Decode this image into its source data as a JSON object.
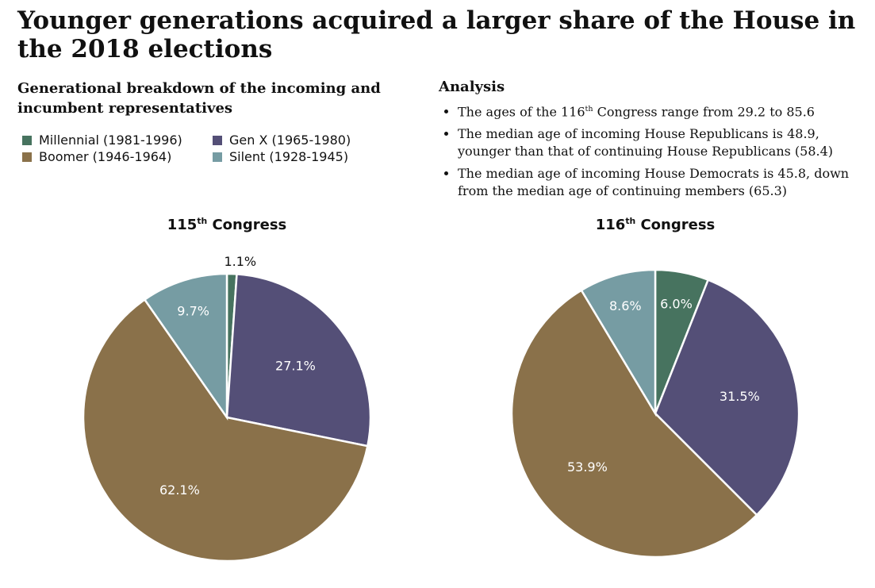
{
  "title": "Younger generations acquired a larger share of the House in the 2018 elections",
  "subtitle": "Generational breakdown of the incoming and incumbent representatives",
  "legend": [
    {
      "label": "Millennial (1981-1996)",
      "color": "#47735f"
    },
    {
      "label": "Gen X (1965-1980)",
      "color": "#544f77"
    },
    {
      "label": "Boomer (1946-1964)",
      "color": "#8a714a"
    },
    {
      "label": "Silent (1928-1945)",
      "color": "#769ca3"
    }
  ],
  "analysis": {
    "heading": "Analysis",
    "bullets": [
      {
        "pre": "The ages of the 116",
        "sup": "th",
        "post": " Congress range from 29.2 to 85.6"
      },
      {
        "pre": "The median age of incoming House Republicans is 48.9, younger than that of continuing House Republicans (58.4)",
        "sup": "",
        "post": ""
      },
      {
        "pre": "The median age of incoming House Democrats is 45.8, down from the median age of continuing members (65.3)",
        "sup": "",
        "post": ""
      }
    ]
  },
  "chart_data": [
    {
      "type": "pie",
      "title": {
        "num": "115",
        "sup": "th",
        "text": " Congress"
      },
      "categories": [
        "Millennial (1981-1996)",
        "Gen X (1965-1980)",
        "Boomer (1946-1964)",
        "Silent (1928-1945)"
      ],
      "values": [
        1.1,
        27.1,
        62.1,
        9.7
      ],
      "labels": [
        "1.1%",
        "27.1%",
        "62.1%",
        "9.7%"
      ],
      "colors": [
        "#47735f",
        "#544f77",
        "#8a714a",
        "#769ca3"
      ]
    },
    {
      "type": "pie",
      "title": {
        "num": "116",
        "sup": "th",
        "text": " Congress"
      },
      "categories": [
        "Millennial (1981-1996)",
        "Gen X (1965-1980)",
        "Boomer (1946-1964)",
        "Silent (1928-1945)"
      ],
      "values": [
        6.0,
        31.5,
        53.9,
        8.6
      ],
      "labels": [
        "6.0%",
        "31.5%",
        "53.9%",
        "8.6%"
      ],
      "colors": [
        "#47735f",
        "#544f77",
        "#8a714a",
        "#769ca3"
      ]
    }
  ]
}
